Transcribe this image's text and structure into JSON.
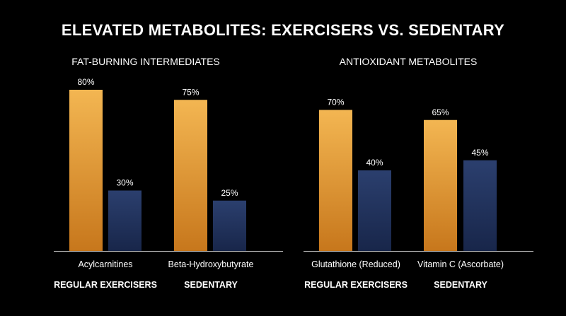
{
  "title": "ELEVATED METABOLITES: EXERCISERS VS. SEDENTARY",
  "colors": {
    "exercisers_top": "#f3b652",
    "exercisers_bottom": "#c7771c",
    "sedentary_top": "#2b3f6e",
    "sedentary_bottom": "#18264a",
    "axis": "#bbbbbb",
    "text": "#ffffff"
  },
  "chart_data": [
    {
      "type": "bar",
      "title": "FAT-BURNING INTERMEDIATES",
      "categories": [
        "Acylcarnitines",
        "Beta-Hydroxybutyrate"
      ],
      "series": [
        {
          "name": "REGULAR EXERCISERS",
          "values": [
            80,
            30
          ]
        },
        {
          "name": "SEDENTARY",
          "values": [
            75,
            25
          ]
        }
      ],
      "value_labels": [
        "80%",
        "30%",
        "75%",
        "25%"
      ],
      "ylim": [
        0,
        100
      ],
      "grid": false,
      "legend_placement": "bottom"
    },
    {
      "type": "bar",
      "title": "ANTIOXIDANT METABOLITES",
      "categories": [
        "Glutathione (Reduced)",
        "Vitamin C (Ascorbate)"
      ],
      "series": [
        {
          "name": "REGULAR EXERCISERS",
          "values": [
            70,
            40
          ]
        },
        {
          "name": "SEDENTARY",
          "values": [
            65,
            45
          ]
        }
      ],
      "value_labels": [
        "70%",
        "40%",
        "65%",
        "45%"
      ],
      "ylim": [
        0,
        100
      ],
      "grid": false,
      "legend_placement": "bottom"
    }
  ]
}
